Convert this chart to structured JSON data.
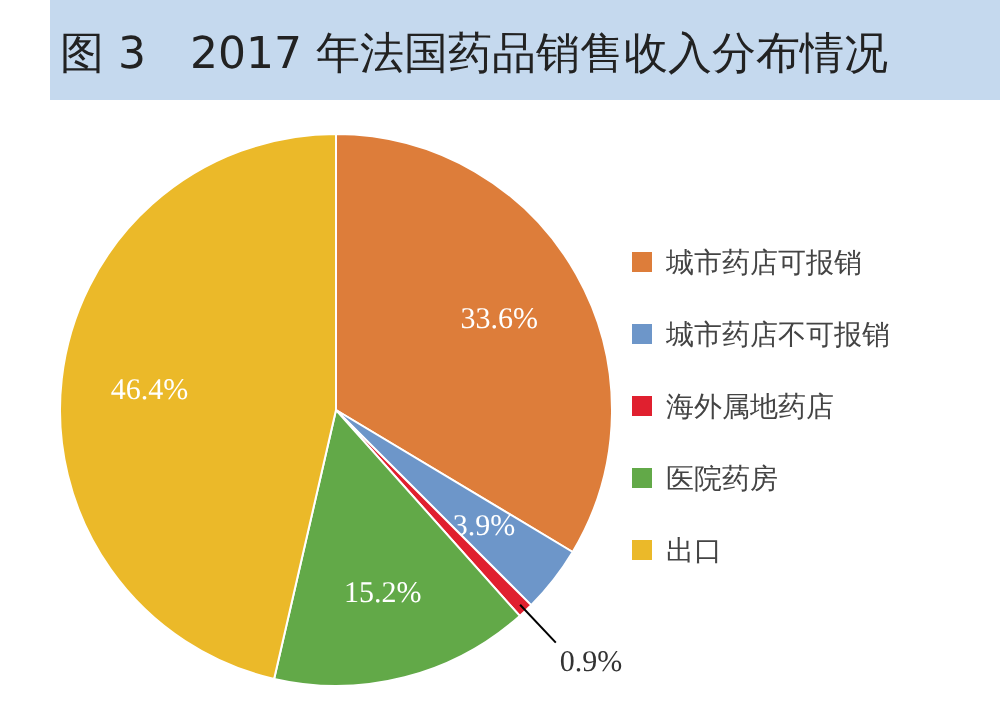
{
  "chart_data": {
    "type": "pie",
    "title": "图 3　2017 年法国药品销售收入分布情况",
    "categories": [
      "城市药店可报销",
      "城市药店不可报销",
      "海外属地药店",
      "医院药房",
      "出口"
    ],
    "values": [
      33.6,
      3.9,
      0.9,
      15.2,
      46.4
    ],
    "colors": [
      "#dd7d3a",
      "#6d96c9",
      "#e0202f",
      "#62a948",
      "#ebb929"
    ],
    "value_labels": [
      "33.6%",
      "3.9%",
      "0.9%",
      "15.2%",
      "46.4%"
    ],
    "legend": "right"
  }
}
